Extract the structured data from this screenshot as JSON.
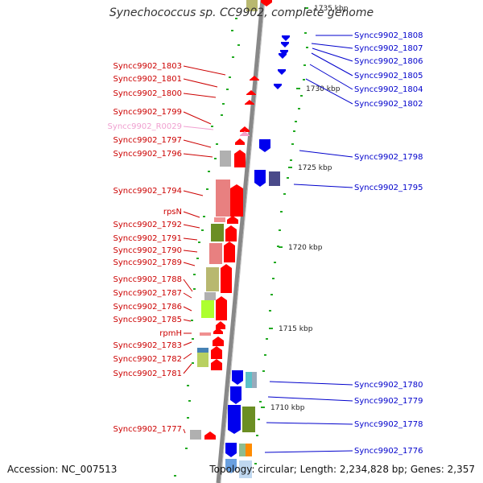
{
  "title": "Synechococcus sp. CC9902, complete genome",
  "footer": {
    "accession": "Accession: NC_007513",
    "summary": "Topology: circular; Length: 2,234,828 bp; Genes: 2,357"
  },
  "colors": {
    "left_label": "#cc0000",
    "right_label": "#0000cc",
    "rna_label": "#f0a0d0",
    "forward_gene": "#ff0000",
    "reverse_gene": "#0000ee",
    "backbone": "#888888",
    "dot": "#22aa22"
  },
  "ticks": [
    "1735 kbp",
    "1730 kbp",
    "1725 kbp",
    "1720 kbp",
    "1715 kbp",
    "1710 kbp"
  ],
  "left_labels": [
    "Syncc9902_1803",
    "Syncc9902_1801",
    "Syncc9902_1800",
    "Syncc9902_1799",
    "Syncc9902_R0029",
    "Syncc9902_1797",
    "Syncc9902_1796",
    "Syncc9902_1794",
    "rpsN",
    "Syncc9902_1792",
    "Syncc9902_1791",
    "Syncc9902_1790",
    "Syncc9902_1789",
    "Syncc9902_1788",
    "Syncc9902_1787",
    "Syncc9902_1786",
    "Syncc9902_1785",
    "rpmH",
    "Syncc9902_1783",
    "Syncc9902_1782",
    "Syncc9902_1781",
    "Syncc9902_1777"
  ],
  "right_labels": [
    "Syncc9902_1808",
    "Syncc9902_1807",
    "Syncc9902_1806",
    "Syncc9902_1805",
    "Syncc9902_1804",
    "Syncc9902_1802",
    "Syncc9902_1798",
    "Syncc9902_1795",
    "Syncc9902_1780",
    "Syncc9902_1779",
    "Syncc9902_1778",
    "Syncc9902_1776"
  ]
}
